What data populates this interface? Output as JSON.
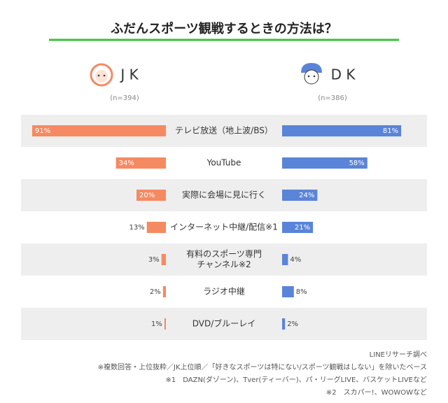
{
  "chart_data": {
    "type": "butterfly",
    "title": "ふだんスポーツ観戦するときの方法は？",
    "categories": [
      "テレビ放送（地上波/BS）",
      "YouTube",
      "実際に会場に見に行く",
      "インターネット中継/配信※1",
      "有料のスポーツ専門\nチャンネル※2",
      "ラジオ中継",
      "DVD/ブルーレイ"
    ],
    "series": [
      {
        "name": "J K",
        "note": "(n=394)",
        "color": "#f58a62",
        "values": [
          91,
          34,
          20,
          13,
          3,
          2,
          1
        ],
        "value_labels": [
          "91%",
          "34%",
          "20%",
          "13%",
          "3%",
          "2%",
          "1%"
        ]
      },
      {
        "name": "D K",
        "note": "(n=386)",
        "color": "#5a84d8",
        "values": [
          81,
          58,
          24,
          21,
          4,
          8,
          2
        ],
        "value_labels": [
          "81%",
          "58%",
          "24%",
          "21%",
          "4%",
          "8%",
          "2%"
        ]
      }
    ],
    "source": "LINEリサーチ調べ",
    "footnotes": [
      "※複数回答・上位抜粋／JK上位順／「好きなスポーツは特にない/スポーツ観戦はしない」を除いたベース",
      "※1　DAZN(ダゾーン)、Tver(ティーバー)、パ・リーグLIVE、バスケットLIVEなど",
      "※2　スカパー!、WOWOWなど"
    ]
  }
}
